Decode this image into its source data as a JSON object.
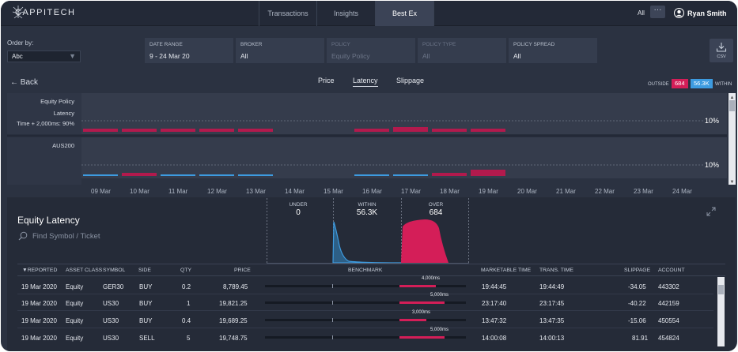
{
  "app": {
    "brand": "CAPPITECH"
  },
  "nav": {
    "tabs": [
      "Transactions",
      "Insights",
      "Best Ex"
    ],
    "active": "Best Ex",
    "all_label": "All",
    "more": "···",
    "user_name": "Ryan Smith"
  },
  "filters": {
    "order_by_label": "Order by:",
    "order_by_value": "Abc",
    "boxes": [
      {
        "label": "DATE RANGE",
        "value": "9 - 24 Mar 20",
        "enabled": true
      },
      {
        "label": "BROKER",
        "value": "All",
        "enabled": true
      },
      {
        "label": "POLICY",
        "value": "Equity Policy",
        "enabled": false
      },
      {
        "label": "POLICY TYPE",
        "value": "All",
        "enabled": false
      },
      {
        "label": "POLICY SPREAD",
        "value": "All",
        "enabled": true
      }
    ],
    "csv_label": "CSV"
  },
  "subnav": {
    "back": "Back",
    "tabs": [
      "Price",
      "Latency",
      "Slippage"
    ],
    "active": "Latency"
  },
  "legend": {
    "outside_label": "OUTSIDE",
    "outside_count": "684",
    "within_count": "56.3K",
    "within_label": "WITHIN",
    "colors": {
      "outside": "#d41e58",
      "within": "#3d9be0"
    }
  },
  "timeline": {
    "rows": [
      {
        "labels": [
          "Equity Policy",
          "Latency",
          "Time + 2,000ms: 90%"
        ],
        "threshold": "10%"
      },
      {
        "labels": [
          "AUS200"
        ],
        "threshold": "10%"
      }
    ],
    "dates": [
      "09 Mar",
      "10 Mar",
      "11 Mar",
      "12 Mar",
      "13 Mar",
      "14 Mar",
      "15 Mar",
      "16 Mar",
      "17 Mar",
      "18 Mar",
      "19 Mar",
      "20 Mar",
      "21 Mar",
      "22 Mar",
      "23 Mar",
      "24 Mar"
    ]
  },
  "panel": {
    "title": "Equity Latency",
    "search_placeholder": "Find Symbol / Ticket",
    "distribution": [
      {
        "label": "UNDER",
        "value": "0"
      },
      {
        "label": "WITHIN",
        "value": "56.3K"
      },
      {
        "label": "OVER",
        "value": "684"
      }
    ]
  },
  "table": {
    "columns": [
      "▼REPORTED",
      "ASSET CLASS",
      "SYMBOL",
      "SIDE",
      "QTY",
      "PRICE",
      "BENCHMARK",
      "MARKETABLE TIME",
      "TRANS. TIME",
      "SLIPPAGE",
      "ACCOUNT"
    ],
    "rows": [
      {
        "reported": "19 Mar 2020",
        "asset": "Equity",
        "symbol": "GER30",
        "side": "BUY",
        "qty": "0.2",
        "price": "8,789.45",
        "bench": "4,000ms",
        "bench_frac": 0.4,
        "mtime": "19:44:45",
        "ttime": "19:44:49",
        "slippage": "-34.05",
        "account": "443302"
      },
      {
        "reported": "19 Mar 2020",
        "asset": "Equity",
        "symbol": "US30",
        "side": "BUY",
        "qty": "1",
        "price": "19,821.25",
        "bench": "5,000ms",
        "bench_frac": 0.5,
        "mtime": "23:17:40",
        "ttime": "23:17:45",
        "slippage": "-40.22",
        "account": "442159"
      },
      {
        "reported": "19 Mar 2020",
        "asset": "Equity",
        "symbol": "US30",
        "side": "BUY",
        "qty": "0.4",
        "price": "19,689.25",
        "bench": "3,000ms",
        "bench_frac": 0.3,
        "mtime": "13:47:32",
        "ttime": "13:47:35",
        "slippage": "-15.06",
        "account": "450554"
      },
      {
        "reported": "19 Mar 2020",
        "asset": "Equity",
        "symbol": "US30",
        "side": "SELL",
        "qty": "5",
        "price": "19,748.75",
        "bench": "5,000ms",
        "bench_frac": 0.5,
        "mtime": "14:00:08",
        "ttime": "14:00:13",
        "slippage": "81.91",
        "account": "454824"
      }
    ]
  }
}
